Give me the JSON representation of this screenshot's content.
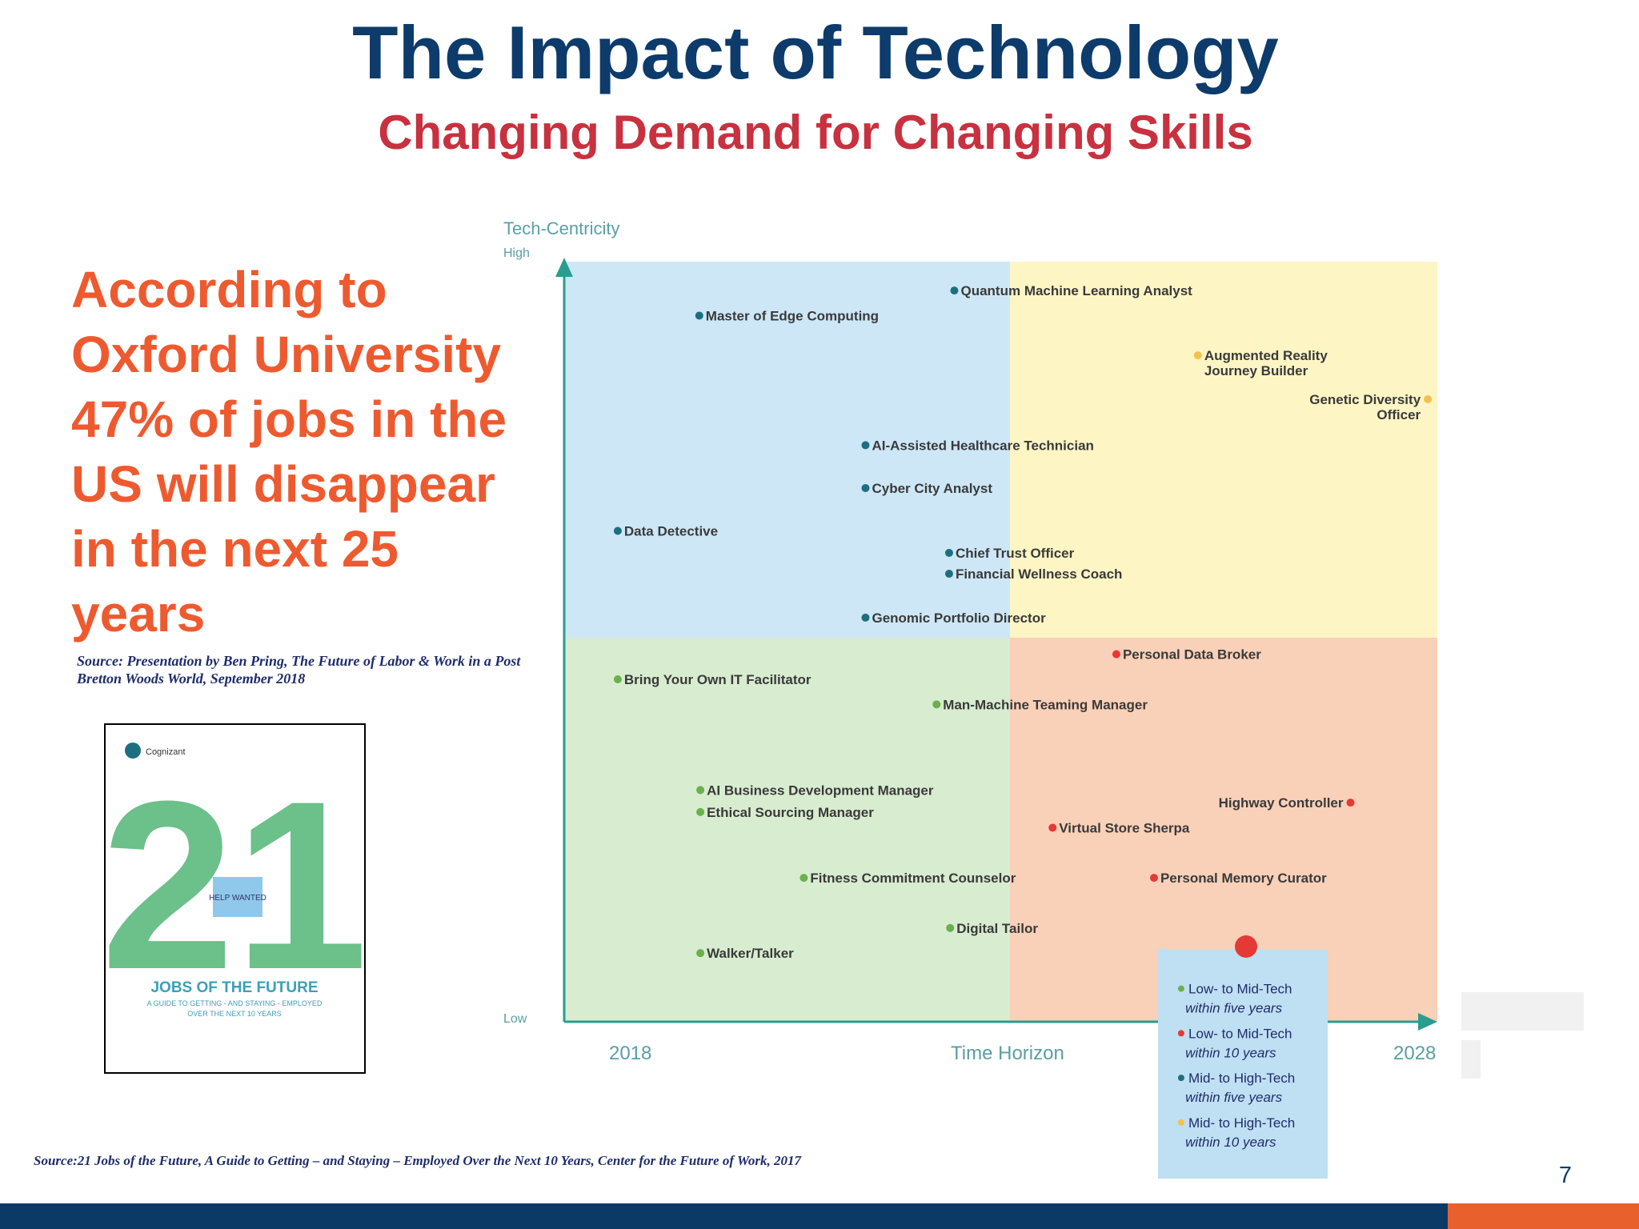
{
  "header": {
    "title": "The Impact of Technology",
    "subtitle": "Changing Demand for Changing Skills"
  },
  "statement": "According to Oxford University 47% of jobs in the US will disappear in the next 25 years",
  "source_1": "Source: Presentation by Ben Pring, The Future of Labor & Work in a Post Bretton Woods World, September 2018",
  "book": {
    "brand": "Cognizant",
    "number": "21",
    "sign": "HELP WANTED",
    "title": "JOBS OF THE FUTURE",
    "subtitle": "A GUIDE TO GETTING - AND STAYING - EMPLOYED OVER THE NEXT 10 YEARS"
  },
  "diagram": {
    "y_axis": {
      "title": "Tech-Centricity",
      "high": "High",
      "low": "Low"
    },
    "x_axis": {
      "title": "Time Horizon",
      "start": "2018",
      "end": "2028"
    },
    "jobs": [
      {
        "label": [
          "Quantum Machine Learning Analyst"
        ],
        "color": "#1d6f80"
      },
      {
        "label": [
          "Master of Edge Computing"
        ],
        "color": "#1d6f80"
      },
      {
        "label": [
          "Augmented Reality",
          "Journey Builder"
        ],
        "color": "#f2c14e"
      },
      {
        "label": [
          "Genetic Diversity",
          "Officer"
        ],
        "color": "#f2c14e"
      },
      {
        "label": [
          "AI-Assisted Healthcare Technician"
        ],
        "color": "#1d6f80"
      },
      {
        "label": [
          "Cyber City Analyst"
        ],
        "color": "#1d6f80"
      },
      {
        "label": [
          "Data Detective"
        ],
        "color": "#1d6f80"
      },
      {
        "label": [
          "Chief Trust Officer"
        ],
        "color": "#1d6f80"
      },
      {
        "label": [
          "Financial Wellness Coach"
        ],
        "color": "#1d6f80"
      },
      {
        "label": [
          "Genomic Portfolio Director"
        ],
        "color": "#1d6f80"
      },
      {
        "label": [
          "Personal Data Broker"
        ],
        "color": "#e53935"
      },
      {
        "label": [
          "Bring Your Own IT Facilitator"
        ],
        "color": "#6ab04c"
      },
      {
        "label": [
          "Man-Machine Teaming Manager"
        ],
        "color": "#6ab04c"
      },
      {
        "label": [
          "AI Business Development Manager"
        ],
        "color": "#6ab04c"
      },
      {
        "label": [
          "Ethical Sourcing Manager"
        ],
        "color": "#6ab04c"
      },
      {
        "label": [
          "Highway Controller"
        ],
        "color": "#e53935"
      },
      {
        "label": [
          "Virtual Store Sherpa"
        ],
        "color": "#e53935"
      },
      {
        "label": [
          "Fitness Commitment Counselor"
        ],
        "color": "#6ab04c"
      },
      {
        "label": [
          "Personal Memory Curator"
        ],
        "color": "#e53935"
      },
      {
        "label": [
          "Digital Tailor"
        ],
        "color": "#6ab04c"
      },
      {
        "label": [
          "Walker/Talker"
        ],
        "color": "#6ab04c"
      }
    ],
    "legend": [
      {
        "tech": "Low- to Mid-Tech",
        "time": "within five years",
        "color": "#6ab04c"
      },
      {
        "tech": "Low- to Mid-Tech",
        "time": "within 10 years",
        "color": "#e53935"
      },
      {
        "tech": "Mid- to High-Tech",
        "time": "within five years",
        "color": "#1d6f80"
      },
      {
        "tech": "Mid- to High-Tech",
        "time": "within 10 years",
        "color": "#f2c14e"
      }
    ]
  },
  "source_2": "Source:21 Jobs of the Future, A Guide to Getting – and Staying – Employed Over the Next 10 Years, Center for the Future of Work, 2017",
  "page_number": "7"
}
